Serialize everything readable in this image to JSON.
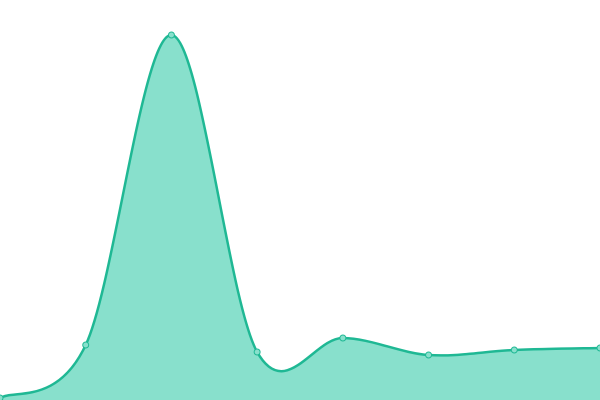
{
  "chart_data": {
    "type": "area",
    "values": [
      2,
      55,
      365,
      48,
      62,
      45,
      50,
      52
    ],
    "ylim": [
      0,
      400
    ],
    "color": "#1fb894",
    "fill": "#88e0cc"
  }
}
